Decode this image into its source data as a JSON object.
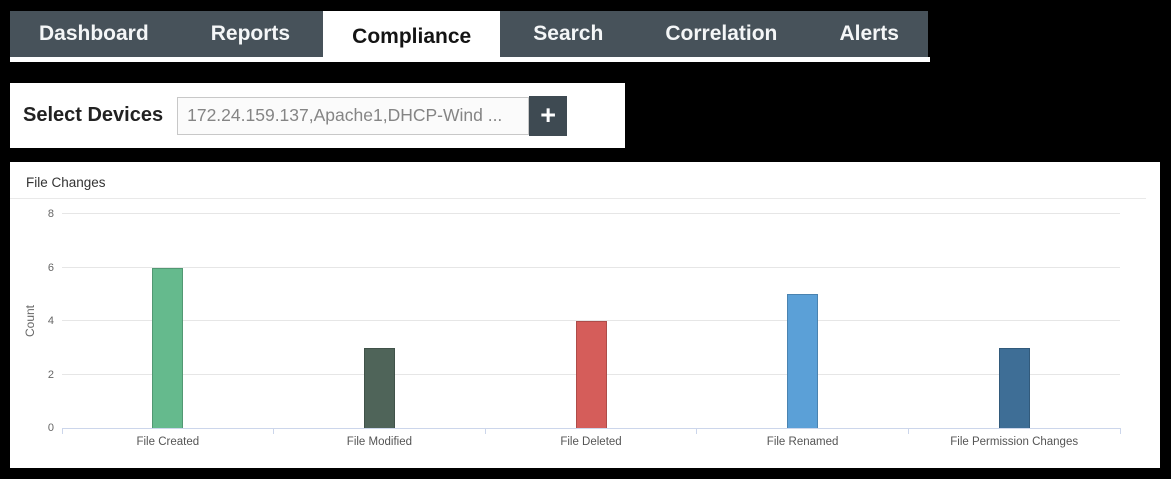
{
  "navbar": {
    "tabs": [
      {
        "id": "dashboard",
        "label": "Dashboard",
        "active": false
      },
      {
        "id": "reports",
        "label": "Reports",
        "active": false
      },
      {
        "id": "compliance",
        "label": "Compliance",
        "active": true
      },
      {
        "id": "search",
        "label": "Search",
        "active": false
      },
      {
        "id": "correlation",
        "label": "Correlation",
        "active": false
      },
      {
        "id": "alerts",
        "label": "Alerts",
        "active": false
      }
    ]
  },
  "device_selector": {
    "label": "Select Devices",
    "value": "172.24.159.137,Apache1,DHCP-Wind ...",
    "add_button": "+"
  },
  "chart_data": {
    "type": "bar",
    "title": "File Changes",
    "categories": [
      "File Created",
      "File Modified",
      "File Deleted",
      "File Renamed",
      "File Permission Changes"
    ],
    "values": [
      6,
      3,
      4,
      5,
      3
    ],
    "bar_colors": [
      "#65ba8d",
      "#4f6459",
      "#d55d5a",
      "#5ba0d7",
      "#3e6e96"
    ],
    "xlabel": "",
    "ylabel": "Count",
    "yticks": [
      0,
      2,
      4,
      6,
      8
    ],
    "ylim": [
      0,
      8
    ],
    "grid": true,
    "legend": false
  },
  "colors": {
    "page_bg": "#000000",
    "navbar_bg": "#47525a",
    "navbar_text": "#f4f6f7",
    "active_tab_bg": "#ffffff",
    "active_tab_text": "#141414",
    "add_button_bg": "#3e4a52",
    "panel_bg": "#ffffff",
    "gridline": "#e6e6e6",
    "axis_line": "#ccd6eb",
    "tick_text": "#666666"
  }
}
